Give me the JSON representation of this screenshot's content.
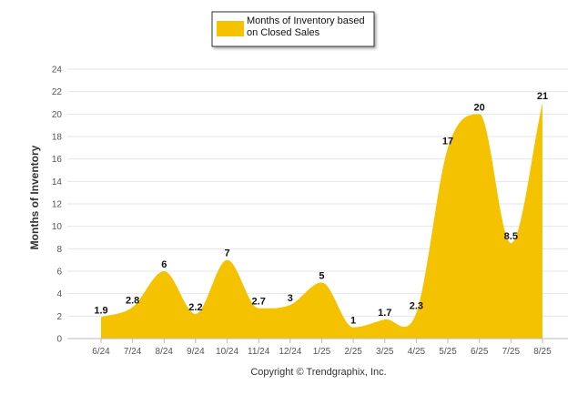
{
  "chart_data": {
    "type": "area",
    "categories": [
      "6/24",
      "7/24",
      "8/24",
      "9/24",
      "10/24",
      "11/24",
      "12/24",
      "1/25",
      "2/25",
      "3/25",
      "4/25",
      "5/25",
      "6/25",
      "7/25",
      "8/25"
    ],
    "series": [
      {
        "name": "Months of Inventory based on Closed Sales",
        "values": [
          1.9,
          2.8,
          6,
          2.2,
          7,
          2.7,
          3,
          5,
          1,
          1.7,
          2.3,
          17,
          20,
          8.5,
          21
        ],
        "color": "#F5C200"
      }
    ],
    "value_labels": [
      "1.9",
      "2.8",
      "6",
      "2.2",
      "7",
      "2.7",
      "3",
      "5",
      "1",
      "1.7",
      "2.3",
      "17",
      "20",
      "8.5",
      "21"
    ],
    "ylabel": "Months of Inventory",
    "xlabel": "",
    "ylim": [
      0,
      24
    ],
    "yticks": [
      0,
      2,
      4,
      6,
      8,
      10,
      12,
      14,
      16,
      18,
      20,
      22,
      24
    ],
    "grid": true,
    "legend": {
      "position": "top-center",
      "lines": [
        "Months of Inventory based",
        "on Closed Sales"
      ]
    }
  },
  "footer": {
    "copyright": "Copyright © Trendgraphix, Inc."
  }
}
